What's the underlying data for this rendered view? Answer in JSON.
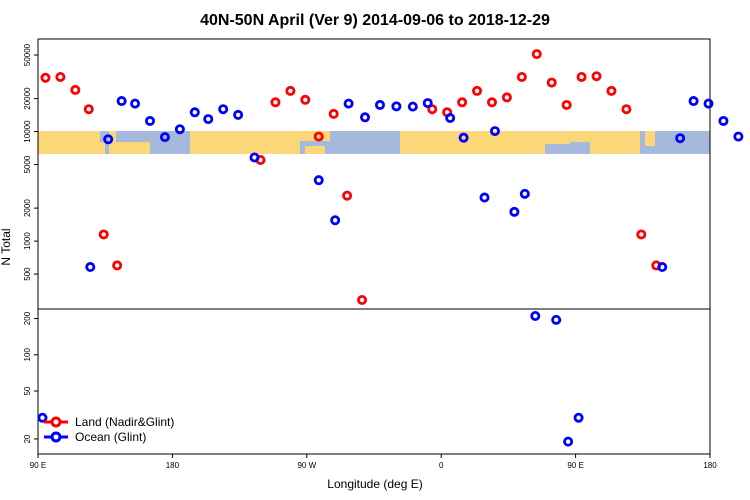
{
  "chart_data": {
    "type": "scatter",
    "title": "40N-50N April (Ver 9)   2014-09-06 to 2018-12-29",
    "xlabel": "Longitude (deg E)",
    "ylabel": "N Total",
    "x_ticks": [
      {
        "x": 90,
        "label": "90 E"
      },
      {
        "x": 180,
        "label": "180"
      },
      {
        "x": 270,
        "label": "90 W"
      },
      {
        "x": 360,
        "label": "0"
      },
      {
        "x": 450,
        "label": "90 E"
      },
      {
        "x": 540,
        "label": "180"
      }
    ],
    "xlim": [
      90,
      540
    ],
    "upper_panel": {
      "scale": "log",
      "ylim": [
        240,
        70000
      ],
      "y_ticks": [
        {
          "v": 500,
          "label": "500"
        },
        {
          "v": 1000,
          "label": "1000"
        },
        {
          "v": 2000,
          "label": "2000"
        },
        {
          "v": 5000,
          "label": "5000"
        },
        {
          "v": 10000,
          "label": "10000"
        },
        {
          "v": 20000,
          "label": "20000"
        },
        {
          "v": 50000,
          "label": "50000"
        }
      ]
    },
    "lower_panel": {
      "scale": "log",
      "ylim": [
        15,
        240
      ],
      "y_ticks": [
        {
          "v": 20,
          "label": "20"
        },
        {
          "v": 50,
          "label": "50"
        },
        {
          "v": 100,
          "label": "100"
        },
        {
          "v": 200,
          "label": "200"
        }
      ]
    },
    "series": [
      {
        "name": "Land (Nadir&Glint)",
        "color": "#ff0000",
        "points": [
          [
            95,
            31000
          ],
          [
            105,
            31500
          ],
          [
            115,
            24000
          ],
          [
            124,
            16000
          ],
          [
            134,
            1150
          ],
          [
            143,
            600
          ],
          [
            239,
            5500
          ],
          [
            249,
            18500
          ],
          [
            259,
            23500
          ],
          [
            269,
            19500
          ],
          [
            278,
            9000
          ],
          [
            288,
            14500
          ],
          [
            297,
            2600
          ],
          [
            307,
            290
          ],
          [
            354,
            16000
          ],
          [
            364,
            15000
          ],
          [
            374,
            18500
          ],
          [
            384,
            23500
          ],
          [
            394,
            18500
          ],
          [
            404,
            20500
          ],
          [
            414,
            31500
          ],
          [
            424,
            51000
          ],
          [
            434,
            28000
          ],
          [
            444,
            17500
          ],
          [
            454,
            31500
          ],
          [
            464,
            32000
          ],
          [
            474,
            23500
          ],
          [
            484,
            16000
          ],
          [
            494,
            1150
          ],
          [
            504,
            600
          ]
        ]
      },
      {
        "name": "Ocean (Glint)",
        "color": "#0000ff",
        "points": [
          [
            93,
            30
          ],
          [
            125,
            580
          ],
          [
            137,
            8500
          ],
          [
            146,
            19000
          ],
          [
            155,
            18000
          ],
          [
            165,
            12500
          ],
          [
            175,
            8900
          ],
          [
            185,
            10500
          ],
          [
            195,
            15000
          ],
          [
            204,
            13000
          ],
          [
            214,
            16000
          ],
          [
            224,
            14200
          ],
          [
            235,
            5800
          ],
          [
            278,
            3600
          ],
          [
            289,
            1550
          ],
          [
            298,
            18000
          ],
          [
            309,
            13500
          ],
          [
            319,
            17500
          ],
          [
            330,
            17000
          ],
          [
            341,
            16900
          ],
          [
            351,
            18200
          ],
          [
            366,
            13300
          ],
          [
            375,
            8800
          ],
          [
            389,
            2500
          ],
          [
            396,
            10100
          ],
          [
            409,
            1850
          ],
          [
            416,
            2700
          ],
          [
            423,
            210
          ],
          [
            437,
            195
          ],
          [
            445,
            19
          ],
          [
            452,
            30
          ],
          [
            508,
            580
          ],
          [
            520,
            8700
          ],
          [
            529,
            19000
          ],
          [
            539,
            18000
          ],
          [
            549,
            12500
          ],
          [
            559,
            9000
          ]
        ]
      }
    ],
    "legend": "bottom-left"
  }
}
